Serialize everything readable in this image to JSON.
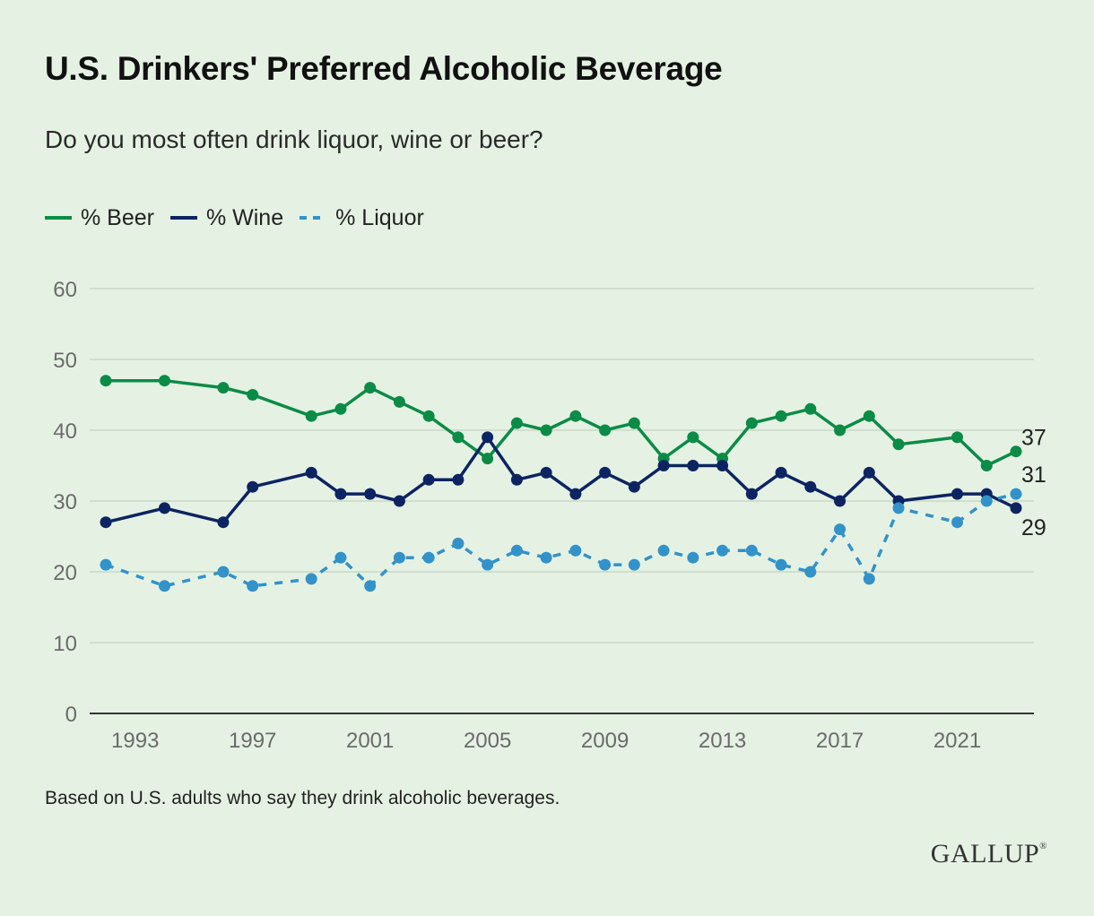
{
  "title": "U.S. Drinkers' Preferred Alcoholic Beverage",
  "subtitle": "Do you most often drink liquor, wine or beer?",
  "footnote": "Based on U.S. adults who say they drink alcoholic beverages.",
  "brand": "GALLUP",
  "brand_mark": "®",
  "colors": {
    "beer": "#0a8b46",
    "wine": "#0d2462",
    "liquor": "#3392c9",
    "grid": "#c9d8c6",
    "axis": "#333333",
    "background": "#e5f2e3"
  },
  "chart_data": {
    "type": "line",
    "title": "U.S. Drinkers' Preferred Alcoholic Beverage",
    "ylim": [
      0,
      60
    ],
    "y_ticks": [
      "0",
      "10",
      "20",
      "30",
      "40",
      "50",
      "60"
    ],
    "x_ticks": [
      "1993",
      "1997",
      "2001",
      "2005",
      "2009",
      "2013",
      "2017",
      "2021"
    ],
    "xlim": [
      1992,
      2023
    ],
    "grid": true,
    "legend_position": "top-left",
    "x": [
      1992,
      1994,
      1996,
      1997,
      1999,
      2000,
      2001,
      2002,
      2003,
      2004,
      2005,
      2006,
      2007,
      2008,
      2009,
      2010,
      2011,
      2012,
      2013,
      2014,
      2015,
      2016,
      2017,
      2018,
      2019,
      2021,
      2022,
      2023
    ],
    "series": [
      {
        "name": "% Beer",
        "key": "beer",
        "style": "solid",
        "values": [
          47,
          47,
          46,
          45,
          42,
          43,
          46,
          44,
          42,
          39,
          36,
          41,
          40,
          42,
          40,
          41,
          36,
          39,
          36,
          41,
          42,
          43,
          40,
          42,
          38,
          39,
          35,
          37
        ],
        "end_label": "37"
      },
      {
        "name": "% Wine",
        "key": "wine",
        "style": "solid",
        "values": [
          27,
          29,
          27,
          32,
          34,
          31,
          31,
          30,
          33,
          33,
          39,
          33,
          34,
          31,
          34,
          32,
          35,
          35,
          35,
          31,
          34,
          32,
          30,
          34,
          30,
          31,
          31,
          29
        ],
        "end_label": "29"
      },
      {
        "name": "% Liquor",
        "key": "liquor",
        "style": "dashed",
        "values": [
          21,
          18,
          20,
          18,
          19,
          22,
          18,
          22,
          22,
          24,
          21,
          23,
          22,
          23,
          21,
          21,
          23,
          22,
          23,
          23,
          21,
          20,
          26,
          19,
          29,
          27,
          30,
          31
        ],
        "end_label": "31"
      }
    ]
  }
}
